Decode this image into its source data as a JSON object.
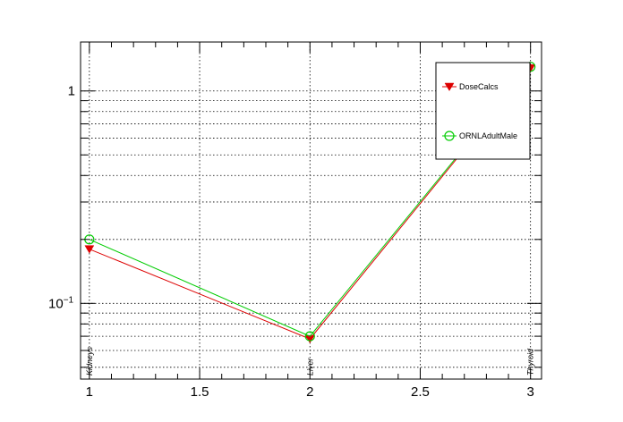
{
  "chart_data": {
    "type": "line",
    "title": "",
    "xlabel": "",
    "ylabel": "",
    "xlim": [
      0.96,
      3.05
    ],
    "ylim": [
      0.044,
      1.7
    ],
    "y_scale": "log",
    "grid": true,
    "x_ticks": [
      {
        "value": 1,
        "label": "1"
      },
      {
        "value": 1.5,
        "label": "1.5"
      },
      {
        "value": 2,
        "label": "2"
      },
      {
        "value": 2.5,
        "label": "2.5"
      },
      {
        "value": 3,
        "label": "3"
      }
    ],
    "y_ticks": [
      {
        "value": 0.1,
        "label": "10",
        "exponent": "−1"
      },
      {
        "value": 1,
        "label": "1",
        "exponent": ""
      }
    ],
    "category_labels": [
      {
        "x": 1,
        "label": "Kidneys"
      },
      {
        "x": 2,
        "label": "Liver"
      },
      {
        "x": 3,
        "label": "Thyroid"
      }
    ],
    "legend": {
      "position": "top-right"
    },
    "series": [
      {
        "name": "DoseCalcs",
        "color": "#dd0000",
        "marker": "triangle-down",
        "x": [
          1,
          2,
          3
        ],
        "y": [
          0.18,
          0.068,
          1.28
        ]
      },
      {
        "name": "ORNLAdultMale",
        "color": "#00cc00",
        "marker": "circle-open",
        "x": [
          1,
          2,
          3
        ],
        "y": [
          0.2,
          0.07,
          1.3
        ]
      }
    ]
  }
}
